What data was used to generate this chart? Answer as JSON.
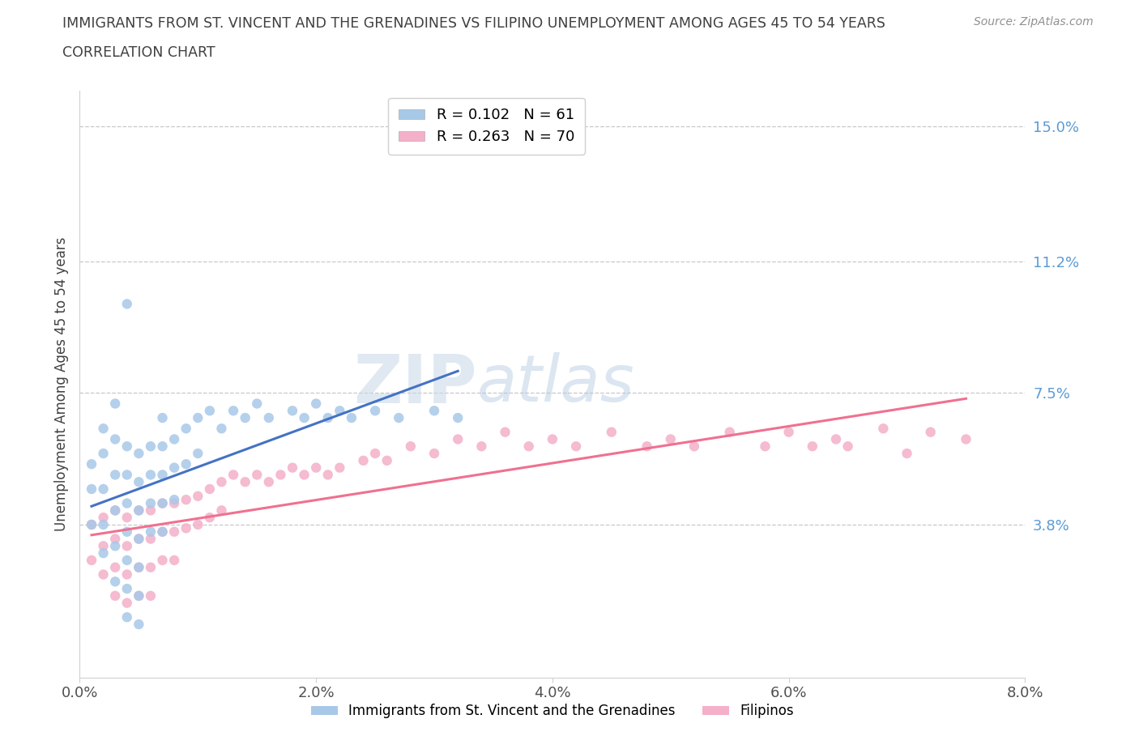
{
  "title": "IMMIGRANTS FROM ST. VINCENT AND THE GRENADINES VS FILIPINO UNEMPLOYMENT AMONG AGES 45 TO 54 YEARS",
  "subtitle": "CORRELATION CHART",
  "source": "Source: ZipAtlas.com",
  "ylabel": "Unemployment Among Ages 45 to 54 years",
  "xlim": [
    0.0,
    0.08
  ],
  "ylim": [
    -0.005,
    0.16
  ],
  "yticks": [
    0.038,
    0.075,
    0.112,
    0.15
  ],
  "ytick_labels": [
    "3.8%",
    "7.5%",
    "11.2%",
    "15.0%"
  ],
  "xticks": [
    0.0,
    0.02,
    0.04,
    0.06,
    0.08
  ],
  "xtick_labels": [
    "0.0%",
    "2.0%",
    "4.0%",
    "6.0%",
    "8.0%"
  ],
  "blue_R": 0.102,
  "blue_N": 61,
  "pink_R": 0.263,
  "pink_N": 70,
  "blue_label": "Immigrants from St. Vincent and the Grenadines",
  "pink_label": "Filipinos",
  "blue_color": "#a8c8e8",
  "pink_color": "#f4b0c8",
  "blue_line_color": "#4472c4",
  "pink_line_color": "#f07090",
  "blue_scatter_x": [
    0.001,
    0.001,
    0.001,
    0.002,
    0.002,
    0.002,
    0.002,
    0.002,
    0.003,
    0.003,
    0.003,
    0.003,
    0.003,
    0.003,
    0.004,
    0.004,
    0.004,
    0.004,
    0.004,
    0.004,
    0.004,
    0.005,
    0.005,
    0.005,
    0.005,
    0.005,
    0.005,
    0.005,
    0.006,
    0.006,
    0.006,
    0.006,
    0.007,
    0.007,
    0.007,
    0.007,
    0.007,
    0.008,
    0.008,
    0.008,
    0.009,
    0.009,
    0.01,
    0.01,
    0.011,
    0.012,
    0.013,
    0.014,
    0.015,
    0.016,
    0.018,
    0.019,
    0.02,
    0.021,
    0.022,
    0.023,
    0.025,
    0.027,
    0.03,
    0.032,
    0.004
  ],
  "blue_scatter_y": [
    0.055,
    0.048,
    0.038,
    0.065,
    0.058,
    0.048,
    0.038,
    0.03,
    0.072,
    0.062,
    0.052,
    0.042,
    0.032,
    0.022,
    0.06,
    0.052,
    0.044,
    0.036,
    0.028,
    0.02,
    0.012,
    0.058,
    0.05,
    0.042,
    0.034,
    0.026,
    0.018,
    0.01,
    0.06,
    0.052,
    0.044,
    0.036,
    0.068,
    0.06,
    0.052,
    0.044,
    0.036,
    0.062,
    0.054,
    0.045,
    0.065,
    0.055,
    0.068,
    0.058,
    0.07,
    0.065,
    0.07,
    0.068,
    0.072,
    0.068,
    0.07,
    0.068,
    0.072,
    0.068,
    0.07,
    0.068,
    0.07,
    0.068,
    0.07,
    0.068,
    0.1
  ],
  "pink_scatter_x": [
    0.001,
    0.001,
    0.002,
    0.002,
    0.002,
    0.003,
    0.003,
    0.003,
    0.003,
    0.004,
    0.004,
    0.004,
    0.004,
    0.005,
    0.005,
    0.005,
    0.005,
    0.006,
    0.006,
    0.006,
    0.006,
    0.007,
    0.007,
    0.007,
    0.008,
    0.008,
    0.008,
    0.009,
    0.009,
    0.01,
    0.01,
    0.011,
    0.011,
    0.012,
    0.012,
    0.013,
    0.014,
    0.015,
    0.016,
    0.017,
    0.018,
    0.019,
    0.02,
    0.021,
    0.022,
    0.024,
    0.025,
    0.026,
    0.028,
    0.03,
    0.032,
    0.034,
    0.036,
    0.038,
    0.04,
    0.042,
    0.045,
    0.048,
    0.05,
    0.052,
    0.055,
    0.058,
    0.06,
    0.062,
    0.064,
    0.065,
    0.068,
    0.07,
    0.072,
    0.075
  ],
  "pink_scatter_y": [
    0.038,
    0.028,
    0.04,
    0.032,
    0.024,
    0.042,
    0.034,
    0.026,
    0.018,
    0.04,
    0.032,
    0.024,
    0.016,
    0.042,
    0.034,
    0.026,
    0.018,
    0.042,
    0.034,
    0.026,
    0.018,
    0.044,
    0.036,
    0.028,
    0.044,
    0.036,
    0.028,
    0.045,
    0.037,
    0.046,
    0.038,
    0.048,
    0.04,
    0.05,
    0.042,
    0.052,
    0.05,
    0.052,
    0.05,
    0.052,
    0.054,
    0.052,
    0.054,
    0.052,
    0.054,
    0.056,
    0.058,
    0.056,
    0.06,
    0.058,
    0.062,
    0.06,
    0.064,
    0.06,
    0.062,
    0.06,
    0.064,
    0.06,
    0.062,
    0.06,
    0.064,
    0.06,
    0.064,
    0.06,
    0.062,
    0.06,
    0.065,
    0.058,
    0.064,
    0.062
  ]
}
